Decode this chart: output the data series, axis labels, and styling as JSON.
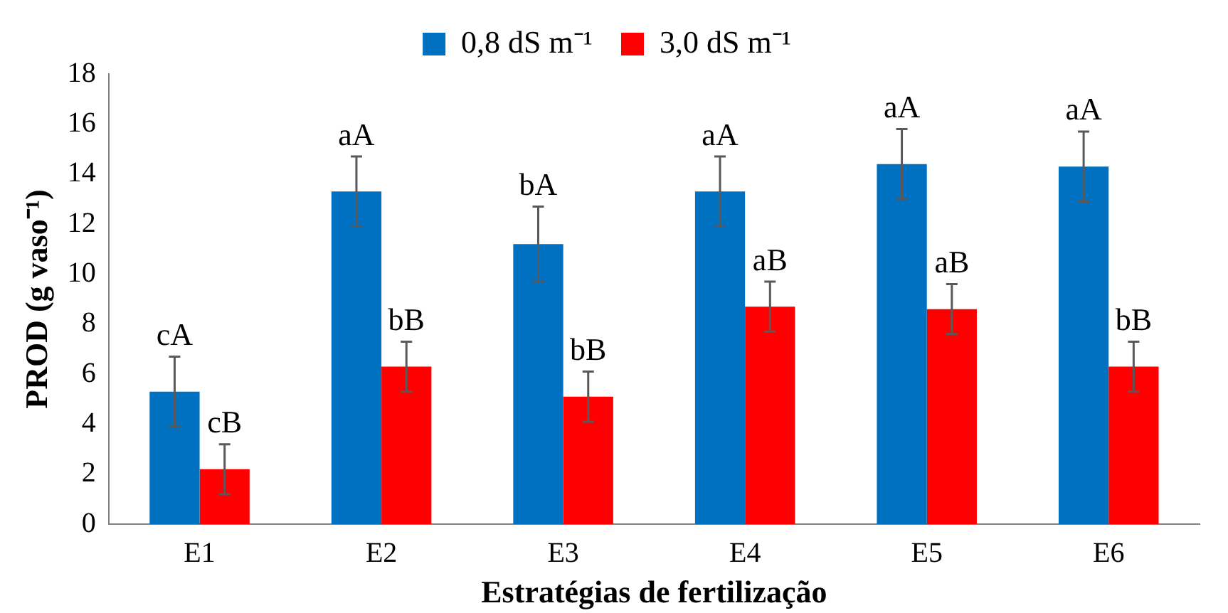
{
  "chart_data": {
    "type": "bar",
    "xlabel": "Estratégias de fertilização",
    "ylabel": "PROD (g vaso⁻¹)",
    "categories": [
      "E1",
      "E2",
      "E3",
      "E4",
      "E5",
      "E6"
    ],
    "series": [
      {
        "name": "0,8 dS m⁻¹",
        "color": "#0070c0",
        "values": [
          5.3,
          13.3,
          11.2,
          13.3,
          14.4,
          14.3
        ],
        "errors": [
          1.4,
          1.4,
          1.5,
          1.4,
          1.4,
          1.4
        ]
      },
      {
        "name": "3,0 dS m⁻¹",
        "color": "#ff0000",
        "values": [
          2.2,
          6.3,
          5.1,
          8.7,
          8.6,
          6.3
        ],
        "errors": [
          1.0,
          1.0,
          1.0,
          1.0,
          1.0,
          1.0
        ]
      }
    ],
    "ylim": [
      0,
      18
    ],
    "yticks": [
      0,
      2,
      4,
      6,
      8,
      10,
      12,
      14,
      16,
      18
    ],
    "grid": false,
    "legend": "top",
    "annotations": [
      {
        "text": "cA",
        "x": "E1",
        "y": 5.3
      },
      {
        "text": "aA",
        "x": "E2",
        "y": 13.3
      },
      {
        "text": "bA",
        "x": "E3",
        "y": 11.2
      },
      {
        "text": "aA",
        "x": "E4",
        "y": 13.3
      },
      {
        "text": "aA",
        "x": "E5",
        "y": 14.4
      },
      {
        "text": "aA",
        "x": "E6",
        "y": 14.3
      },
      {
        "text": "cB",
        "x": "E1",
        "y": 2.2
      },
      {
        "text": "bB",
        "x": "E2",
        "y": 6.3
      },
      {
        "text": "bB",
        "x": "E3",
        "y": 5.1
      },
      {
        "text": "aB",
        "x": "E4",
        "y": 8.7
      },
      {
        "text": "aB",
        "x": "E5",
        "y": 8.6
      },
      {
        "text": "bB",
        "x": "E6",
        "y": 6.3
      }
    ]
  }
}
